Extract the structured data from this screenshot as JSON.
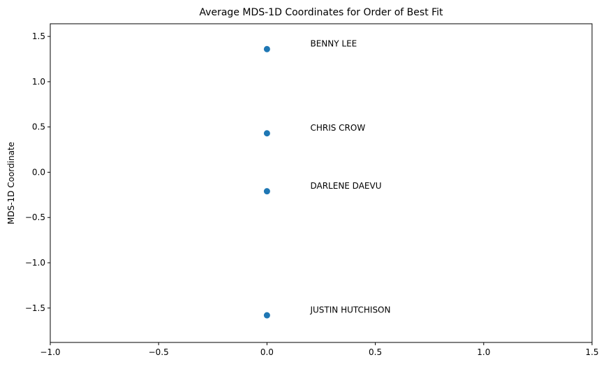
{
  "chart_data": {
    "type": "scatter",
    "title": "Average MDS-1D Coordinates for Order of Best Fit",
    "xlabel": "",
    "ylabel": "MDS-1D Coordinate",
    "xlim": [
      -1.0,
      1.5
    ],
    "ylim": [
      -1.88,
      1.64
    ],
    "xticks": [
      "−1.0",
      "−0.5",
      "0.0",
      "0.5",
      "1.0",
      "1.5"
    ],
    "xtick_values": [
      -1.0,
      -0.5,
      0.0,
      0.5,
      1.0,
      1.5
    ],
    "yticks": [
      "−1.5",
      "−1.0",
      "−0.5",
      "0.0",
      "0.5",
      "1.0",
      "1.5"
    ],
    "ytick_values": [
      -1.5,
      -1.0,
      -0.5,
      0.0,
      0.5,
      1.0,
      1.5
    ],
    "grid": false,
    "marker_color": "#1f77b4",
    "points": [
      {
        "label": "BENNY LEE",
        "x": 0.0,
        "y": 1.36
      },
      {
        "label": "CHRIS CROW",
        "x": 0.0,
        "y": 0.43
      },
      {
        "label": "DARLENE DAEVU",
        "x": 0.0,
        "y": -0.21
      },
      {
        "label": "JUSTIN HUTCHISON",
        "x": 0.0,
        "y": -1.58
      }
    ]
  }
}
